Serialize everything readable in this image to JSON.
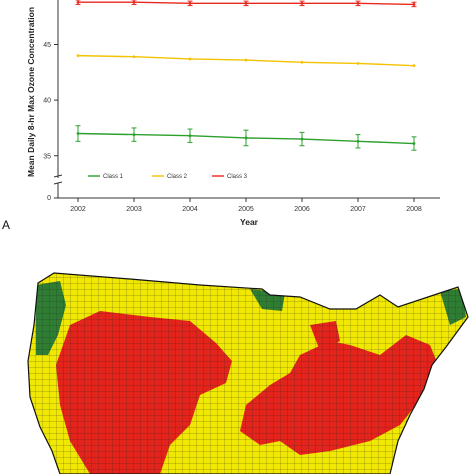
{
  "chart_data": {
    "type": "line",
    "panel_label": "A",
    "ylabel": "Mean Daily 8-hr Max Ozone Concentration",
    "xlabel": "Year",
    "x": [
      2002,
      2003,
      2004,
      2005,
      2006,
      2007,
      2008
    ],
    "x_tick_labels": [
      "2002",
      "2003",
      "2004",
      "2005",
      "2006",
      "2007",
      "2008"
    ],
    "y_ticks": [
      {
        "value": 35,
        "label": "35"
      },
      {
        "value": 40,
        "label": "40"
      },
      {
        "value": 45,
        "label": "45"
      }
    ],
    "y_origin_label": "0",
    "y_axis_break": true,
    "ylim": [
      33,
      49
    ],
    "grid": false,
    "legend_position": "bottom-left",
    "series": [
      {
        "name": "Class 1",
        "color": "#2ca02c",
        "values": [
          37.0,
          36.9,
          36.8,
          36.6,
          36.5,
          36.3,
          36.1
        ],
        "error": [
          0.7,
          0.6,
          0.6,
          0.7,
          0.6,
          0.6,
          0.6
        ]
      },
      {
        "name": "Class 2",
        "color": "#f2c300",
        "values": [
          44.0,
          43.9,
          43.7,
          43.6,
          43.4,
          43.3,
          43.1
        ],
        "error": [
          0.1,
          0.1,
          0.1,
          0.1,
          0.1,
          0.1,
          0.1
        ]
      },
      {
        "name": "Class 3",
        "color": "#e8281e",
        "values": [
          48.8,
          48.8,
          48.7,
          48.7,
          48.7,
          48.7,
          48.6
        ],
        "error": [
          0.2,
          0.2,
          0.2,
          0.2,
          0.2,
          0.2,
          0.2
        ]
      }
    ]
  },
  "map": {
    "colors": {
      "class1": "#2e7d32",
      "class2": "#f0e800",
      "class3": "#e4231b",
      "border": "#111111"
    }
  }
}
